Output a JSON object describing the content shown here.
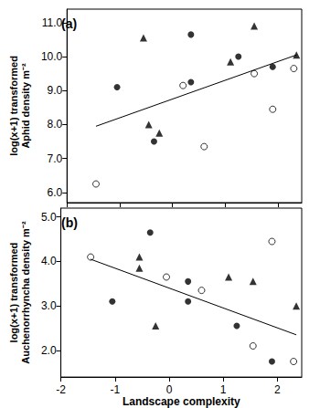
{
  "chart_data": [
    {
      "type": "scatter",
      "title": "(a)",
      "ylabel": "log(x+1) transformed\nAphid density m⁻²",
      "tick_labels": "y",
      "xlim": [
        -2,
        2.45
      ],
      "xticks": [
        -2,
        -1,
        0,
        1,
        2
      ],
      "ylim": [
        5.7,
        11.4
      ],
      "yticks": [
        {
          "value": 6,
          "label": "6.0"
        },
        {
          "value": 7,
          "label": "7.0"
        },
        {
          "value": 8,
          "label": "8.0"
        },
        {
          "value": 9,
          "label": "9.0"
        },
        {
          "value": 10,
          "label": "10.0"
        },
        {
          "value": 11,
          "label": "11.0"
        }
      ],
      "grid": false,
      "series": [
        {
          "type": "scatter",
          "marker": "circle_open",
          "color": "#000000",
          "x": [
            -1.45,
            0.6,
            0.2,
            1.55,
            1.9,
            2.3
          ],
          "values": [
            6.25,
            7.35,
            9.15,
            9.5,
            8.45,
            9.65
          ]
        },
        {
          "type": "scatter",
          "marker": "circle",
          "color": "#000000",
          "x": [
            -1.05,
            -0.35,
            0.35,
            0.35,
            1.25,
            1.9
          ],
          "values": [
            9.1,
            7.5,
            10.65,
            9.25,
            10.0,
            9.7
          ]
        },
        {
          "type": "scatter",
          "marker": "triangle",
          "color": "#000000",
          "x": [
            -0.55,
            -0.45,
            -0.25,
            1.1,
            1.55,
            2.35
          ],
          "values": [
            10.55,
            8.0,
            7.75,
            9.85,
            10.9,
            10.05
          ]
        },
        {
          "type": "line",
          "color": "#000000",
          "x": [
            -1.45,
            2.35
          ],
          "values": [
            7.95,
            10.05
          ]
        }
      ]
    },
    {
      "type": "scatter",
      "title": "(b)",
      "xlabel": "Landscape complexity",
      "ylabel": "log(x+1) transformed\nAuchenorrhyncha density m⁻²",
      "xlim": [
        -2,
        2.45
      ],
      "xticks": [
        -2,
        -1,
        0,
        1,
        2
      ],
      "ylim": [
        1.4,
        5.2
      ],
      "yticks": [
        {
          "value": 2,
          "label": "2.0"
        },
        {
          "value": 3,
          "label": "3.0"
        },
        {
          "value": 4,
          "label": "4.0"
        },
        {
          "value": 5,
          "label": "5.0"
        }
      ],
      "grid": false,
      "series": [
        {
          "type": "scatter",
          "marker": "circle_open",
          "color": "#000000",
          "x": [
            -1.45,
            -0.05,
            0.6,
            1.55,
            1.9,
            2.3
          ],
          "values": [
            4.1,
            3.65,
            3.35,
            2.1,
            4.45,
            1.75
          ]
        },
        {
          "type": "scatter",
          "marker": "circle",
          "color": "#000000",
          "x": [
            -1.05,
            -0.35,
            0.35,
            0.35,
            1.25,
            1.9
          ],
          "values": [
            3.1,
            4.65,
            3.55,
            3.1,
            2.55,
            1.75
          ]
        },
        {
          "type": "scatter",
          "marker": "triangle",
          "color": "#000000",
          "x": [
            -0.55,
            -0.55,
            -0.25,
            1.1,
            1.55,
            2.35
          ],
          "values": [
            4.1,
            3.85,
            2.55,
            3.65,
            3.55,
            3.0
          ]
        },
        {
          "type": "line",
          "color": "#000000",
          "x": [
            -1.45,
            2.35
          ],
          "values": [
            4.05,
            2.35
          ]
        }
      ]
    }
  ]
}
